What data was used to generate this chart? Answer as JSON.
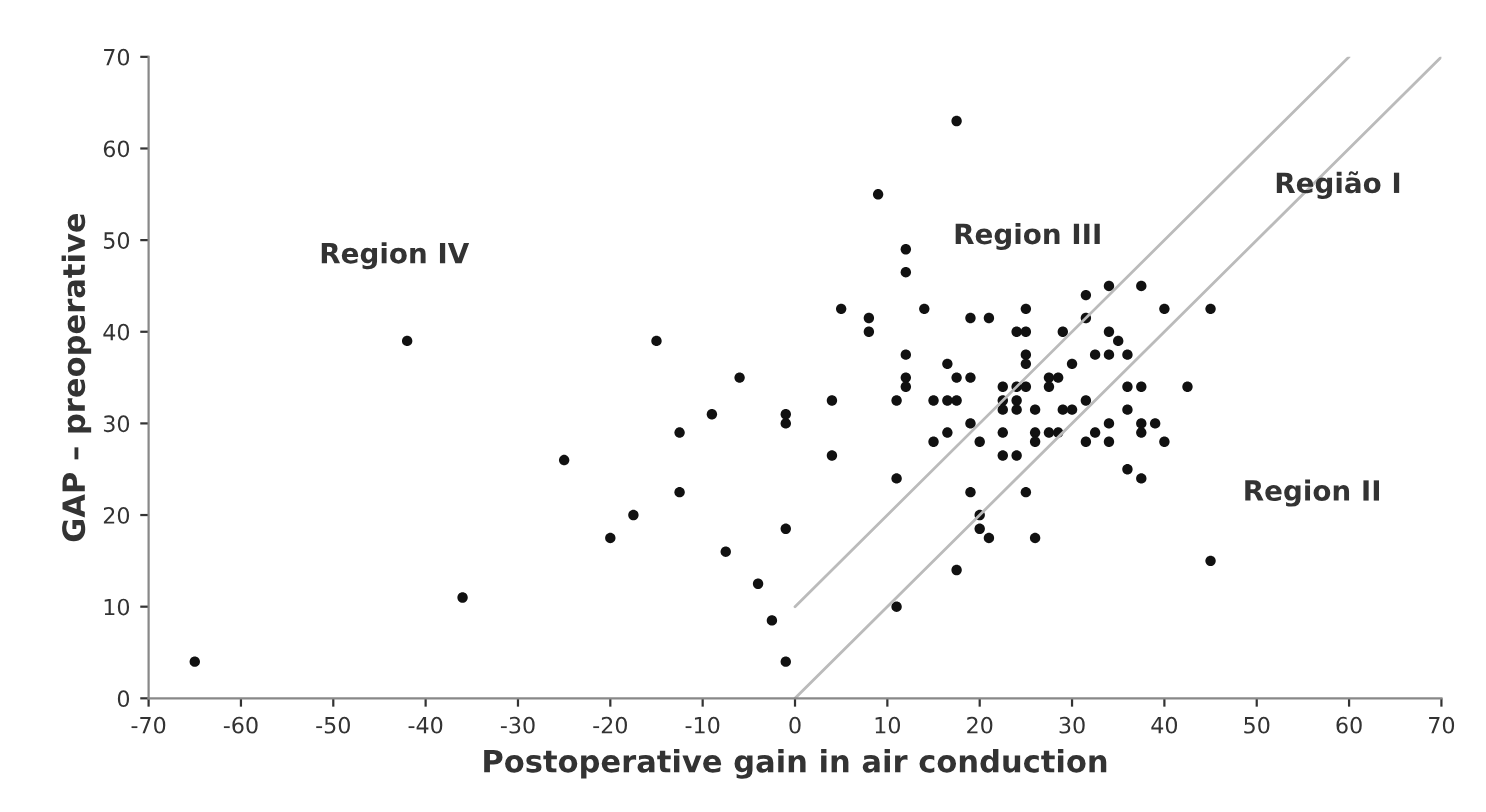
{
  "chart_data": {
    "type": "scatter",
    "xlabel": "Postoperative gain in air conduction",
    "ylabel": "GAP – preoperative",
    "xlim": [
      -70,
      70
    ],
    "ylim": [
      0,
      70
    ],
    "xticks": [
      -70,
      -60,
      -50,
      -40,
      -30,
      -20,
      -10,
      0,
      10,
      20,
      30,
      40,
      50,
      60,
      70
    ],
    "yticks": [
      0,
      10,
      20,
      30,
      40,
      50,
      60,
      70
    ],
    "grid": false,
    "series": [
      {
        "color": "#111111",
        "marker": "circle",
        "x": [
          -65,
          -42,
          -36,
          -25,
          -20,
          -17.5,
          -15,
          -12.5,
          -12.5,
          -9,
          -7.5,
          -6,
          -4,
          -2.5,
          -1,
          -1,
          -1,
          -1,
          17.5,
          9,
          12,
          12,
          5,
          8,
          8,
          14,
          19,
          21,
          25,
          24,
          25,
          29,
          31.5,
          34,
          37.5,
          31.5,
          34,
          35,
          40,
          45,
          12,
          12,
          12,
          11,
          4,
          16.5,
          17.5,
          19,
          15,
          16.5,
          17.5,
          25,
          25,
          22.5,
          24,
          25,
          22.5,
          24,
          22.5,
          24,
          27.5,
          28.5,
          27.5,
          30,
          32.5,
          34,
          36,
          31.5,
          36,
          37.5,
          42.5,
          19,
          26,
          29,
          30,
          36,
          37.5,
          39,
          37.5,
          26,
          27.5,
          28.5,
          26,
          31.5,
          32.5,
          34,
          34,
          40,
          15,
          16.5,
          20,
          22.5,
          22.5,
          24,
          4,
          36,
          37.5,
          11,
          19,
          25,
          20,
          20,
          21,
          26,
          17.5,
          11,
          45
        ],
        "values": [
          4,
          39,
          11,
          26,
          17.5,
          20,
          39,
          29,
          22.5,
          31,
          16,
          35,
          12.5,
          8.5,
          31,
          30,
          18.5,
          4,
          63,
          55,
          49,
          46.5,
          42.5,
          41.5,
          40,
          42.5,
          41.5,
          41.5,
          42.5,
          40,
          40,
          40,
          44,
          45,
          45,
          41.5,
          40,
          39,
          42.5,
          42.5,
          37.5,
          35,
          34,
          32.5,
          32.5,
          36.5,
          35,
          35,
          32.5,
          32.5,
          32.5,
          37.5,
          36.5,
          34,
          34,
          34,
          32.5,
          32.5,
          31.5,
          31.5,
          35,
          35,
          34,
          36.5,
          37.5,
          37.5,
          37.5,
          32.5,
          34,
          34,
          34,
          30,
          31.5,
          31.5,
          31.5,
          31.5,
          30,
          30,
          29,
          29,
          29,
          29,
          28,
          28,
          29,
          30,
          28,
          28,
          28,
          29,
          28,
          29,
          26.5,
          26.5,
          26.5,
          25,
          24,
          24,
          22.5,
          22.5,
          20,
          18.5,
          17.5,
          17.5,
          14,
          10,
          15
        ]
      },
      {
        "type": "line",
        "color": "#bbbbbb",
        "x": [
          0,
          60
        ],
        "values": [
          10,
          70
        ]
      },
      {
        "type": "line",
        "color": "#bbbbbb",
        "x": [
          0,
          70
        ],
        "values": [
          0,
          70
        ]
      }
    ],
    "annotations": [
      "Region IV",
      "Region III",
      "Região I",
      "Region II"
    ]
  }
}
